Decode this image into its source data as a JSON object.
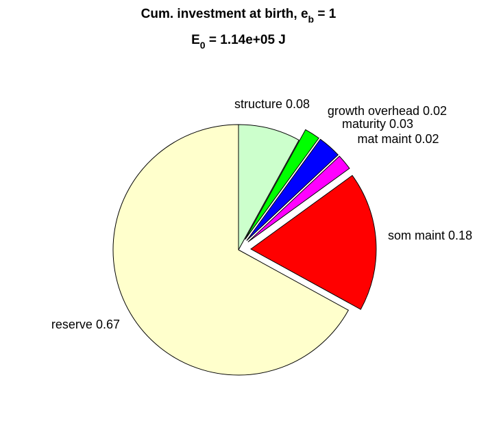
{
  "chart_data": {
    "type": "pie",
    "title": [
      "Cum. investment at birth, e",
      "b",
      " = 1"
    ],
    "subtitle": [
      "E",
      "0",
      " = 1.14e+05 J"
    ],
    "categories": [
      "structure",
      "growth overhead",
      "maturity",
      "mat maint",
      "som maint",
      "reserve"
    ],
    "values": [
      0.08,
      0.02,
      0.03,
      0.02,
      0.18,
      0.67
    ],
    "colors": [
      "#ccffcc",
      "#00ff00",
      "#0000ff",
      "#ff00ff",
      "#ff0000",
      "#ffffcc"
    ],
    "explode": [
      false,
      true,
      true,
      true,
      true,
      false
    ]
  }
}
